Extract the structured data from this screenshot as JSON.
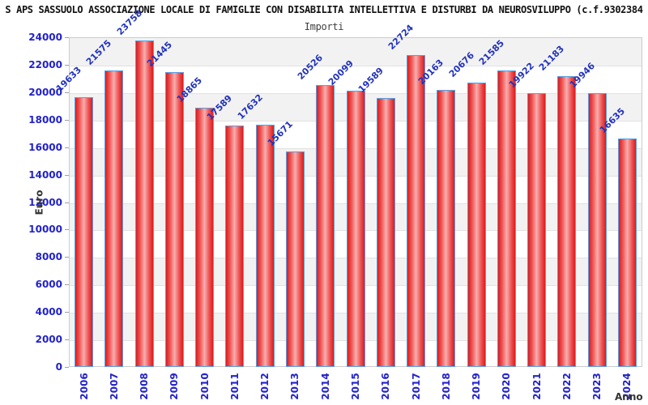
{
  "header": {
    "title": "S APS SASSUOLO ASSOCIAZIONE LOCALE DI FAMIGLIE CON DISABILITA INTELLETTIVA E DISTURBI DA NEUROSVILUPPO (c.f.9302384",
    "subtitle": "Importi"
  },
  "chart_data": {
    "type": "bar",
    "title": "Importi",
    "xlabel": "Anno",
    "ylabel": "Euro",
    "categories": [
      "2006",
      "2007",
      "2008",
      "2009",
      "2010",
      "2011",
      "2012",
      "2013",
      "2014",
      "2015",
      "2016",
      "2017",
      "2018",
      "2019",
      "2020",
      "2021",
      "2022",
      "2023",
      "2024"
    ],
    "values": [
      19633,
      21575,
      23758,
      21445,
      18865,
      17589,
      17632,
      15671,
      20526,
      20099,
      19589,
      22724,
      20163,
      20676,
      21585,
      19922,
      21183,
      19946,
      16635
    ],
    "show_value_labels": true,
    "ylim": [
      0,
      24000
    ],
    "yticks": [
      0,
      2000,
      4000,
      6000,
      8000,
      10000,
      12000,
      14000,
      16000,
      18000,
      20000,
      22000,
      24000
    ],
    "grid": "horizontal-bands-alternating",
    "legend": "none",
    "colors": {
      "bar_edge_red": "#dc1c1c",
      "bar_mid_red": "#ee5050",
      "bar_center_red": "#f8aeae",
      "bar_border_blue": "#55a0e6",
      "label_blue": "#2233bb",
      "tick_label_blue": "#2222cc",
      "band_gray": "#f2f2f2",
      "gridline_gray": "#e2e2e2",
      "plot_border_gray": "#cccccc",
      "axis_title_color": "#333333",
      "title_color": "#111111"
    }
  }
}
